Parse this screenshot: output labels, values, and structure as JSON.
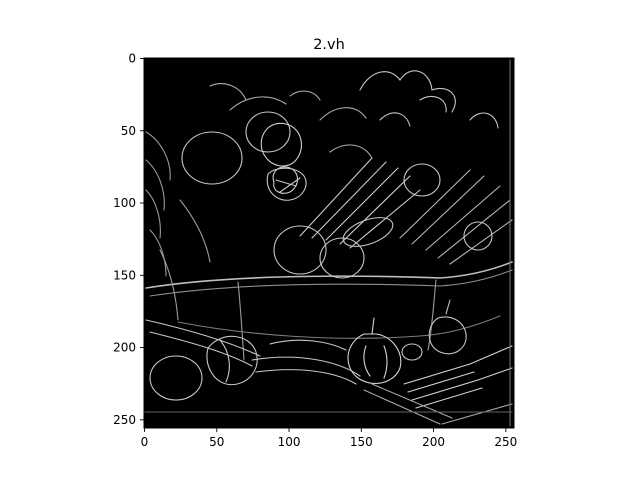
{
  "chart_data": {
    "type": "image",
    "title": "2.vh",
    "xlabel": "",
    "ylabel": "",
    "xlim": [
      0,
      256
    ],
    "ylim": [
      256,
      0
    ],
    "xticks": [
      0,
      50,
      100,
      150,
      200,
      250
    ],
    "yticks": [
      0,
      50,
      100,
      150,
      200,
      250
    ],
    "y_axis_inverted": true,
    "grid": false,
    "legend": "none",
    "colormap": "gray",
    "background_color": "#000000",
    "edge_color": "#e8e8e8",
    "content": "grayscale edge-magnitude image of a basket of vegetables"
  }
}
